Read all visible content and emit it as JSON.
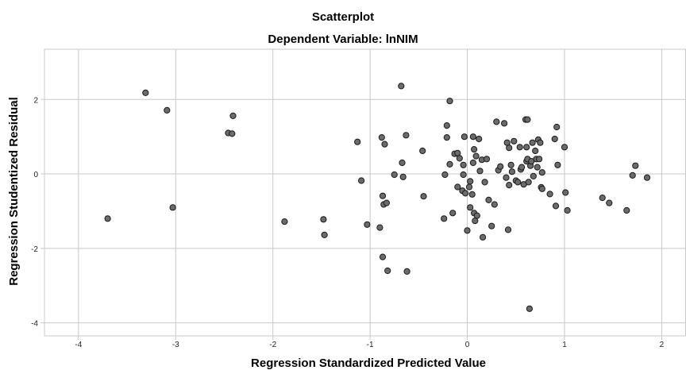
{
  "chart_data": {
    "type": "scatter",
    "title": "Scatterplot",
    "subtitle": "Dependent Variable: lnNIM",
    "xlabel": "Regression Standardized Predicted Value",
    "ylabel": "Regression Studentized Residual",
    "xlim": [
      -4.35,
      2.25
    ],
    "ylim": [
      -4.35,
      3.35
    ],
    "x_ticks": [
      -4,
      -3,
      -2,
      -1,
      0,
      1,
      2
    ],
    "y_ticks": [
      -4,
      -2,
      0,
      2
    ],
    "x_tick_labels": [
      "-4",
      "-3",
      "-2",
      "-1",
      "0",
      "1",
      "2"
    ],
    "y_tick_labels": [
      "-4",
      "-2",
      "0",
      "2"
    ],
    "grid": true,
    "point_color": "#6b6b6b",
    "point_edge_color": "#1a1a1a",
    "grid_color": "#c8c8c8",
    "points": [
      [
        -3.7,
        -1.2
      ],
      [
        -3.31,
        2.18
      ],
      [
        -3.09,
        1.71
      ],
      [
        -3.03,
        -0.9
      ],
      [
        -2.46,
        1.1
      ],
      [
        -2.42,
        1.08
      ],
      [
        -2.41,
        1.56
      ],
      [
        -1.88,
        -1.28
      ],
      [
        -1.48,
        -1.22
      ],
      [
        -1.47,
        -1.64
      ],
      [
        -1.13,
        0.86
      ],
      [
        -1.09,
        -0.18
      ],
      [
        -1.03,
        -1.36
      ],
      [
        -0.9,
        -1.44
      ],
      [
        -0.88,
        0.98
      ],
      [
        -0.87,
        -2.23
      ],
      [
        -0.87,
        -0.59
      ],
      [
        -0.85,
        0.8
      ],
      [
        -0.86,
        -0.82
      ],
      [
        -0.83,
        -0.78
      ],
      [
        -0.82,
        -2.6
      ],
      [
        -0.75,
        -0.02
      ],
      [
        -0.68,
        2.36
      ],
      [
        -0.67,
        0.3
      ],
      [
        -0.66,
        -0.08
      ],
      [
        -0.63,
        1.04
      ],
      [
        -0.62,
        -2.62
      ],
      [
        -0.46,
        0.62
      ],
      [
        -0.45,
        -0.6
      ],
      [
        -0.24,
        -1.2
      ],
      [
        -0.23,
        -0.02
      ],
      [
        -0.21,
        1.3
      ],
      [
        -0.21,
        0.98
      ],
      [
        -0.18,
        1.96
      ],
      [
        -0.18,
        0.26
      ],
      [
        -0.15,
        -1.05
      ],
      [
        -0.13,
        0.54
      ],
      [
        -0.1,
        0.56
      ],
      [
        -0.1,
        -0.35
      ],
      [
        -0.08,
        0.42
      ],
      [
        -0.05,
        -0.45
      ],
      [
        -0.04,
        -0.02
      ],
      [
        -0.04,
        0.24
      ],
      [
        -0.03,
        1.0
      ],
      [
        -0.02,
        -0.52
      ],
      [
        0.0,
        -1.52
      ],
      [
        0.02,
        -0.35
      ],
      [
        0.03,
        -0.9
      ],
      [
        0.03,
        -0.2
      ],
      [
        0.05,
        -0.55
      ],
      [
        0.06,
        1.0
      ],
      [
        0.06,
        0.3
      ],
      [
        0.07,
        -1.05
      ],
      [
        0.07,
        0.66
      ],
      [
        0.08,
        -1.26
      ],
      [
        0.09,
        0.48
      ],
      [
        0.1,
        -1.12
      ],
      [
        0.12,
        0.94
      ],
      [
        0.13,
        0.08
      ],
      [
        0.15,
        0.38
      ],
      [
        0.16,
        -1.7
      ],
      [
        0.18,
        -0.22
      ],
      [
        0.2,
        0.4
      ],
      [
        0.22,
        -0.7
      ],
      [
        0.25,
        -1.4
      ],
      [
        0.28,
        -0.82
      ],
      [
        0.3,
        1.4
      ],
      [
        0.32,
        0.1
      ],
      [
        0.34,
        0.2
      ],
      [
        0.38,
        1.36
      ],
      [
        0.4,
        -0.1
      ],
      [
        0.41,
        0.84
      ],
      [
        0.42,
        -1.5
      ],
      [
        0.43,
        0.7
      ],
      [
        0.43,
        -0.3
      ],
      [
        0.45,
        0.24
      ],
      [
        0.46,
        0.06
      ],
      [
        0.48,
        0.88
      ],
      [
        0.5,
        -0.18
      ],
      [
        0.52,
        -0.22
      ],
      [
        0.54,
        0.72
      ],
      [
        0.55,
        0.12
      ],
      [
        0.56,
        0.18
      ],
      [
        0.58,
        -0.28
      ],
      [
        0.6,
        1.46
      ],
      [
        0.61,
        0.34
      ],
      [
        0.61,
        0.72
      ],
      [
        0.62,
        1.46
      ],
      [
        0.62,
        0.4
      ],
      [
        0.63,
        -0.22
      ],
      [
        0.64,
        -3.62
      ],
      [
        0.65,
        0.22
      ],
      [
        0.66,
        0.34
      ],
      [
        0.67,
        0.84
      ],
      [
        0.68,
        -0.06
      ],
      [
        0.7,
        0.62
      ],
      [
        0.71,
        0.4
      ],
      [
        0.72,
        0.18
      ],
      [
        0.73,
        0.92
      ],
      [
        0.74,
        0.4
      ],
      [
        0.75,
        0.84
      ],
      [
        0.76,
        -0.36
      ],
      [
        0.77,
        0.04
      ],
      [
        0.77,
        -0.4
      ],
      [
        0.85,
        -0.54
      ],
      [
        0.9,
        0.94
      ],
      [
        0.91,
        -0.86
      ],
      [
        0.92,
        1.26
      ],
      [
        0.93,
        0.24
      ],
      [
        1.0,
        0.72
      ],
      [
        1.01,
        -0.5
      ],
      [
        1.03,
        -0.98
      ],
      [
        1.39,
        -0.64
      ],
      [
        1.46,
        -0.78
      ],
      [
        1.64,
        -0.98
      ],
      [
        1.7,
        -0.04
      ],
      [
        1.73,
        0.22
      ],
      [
        1.85,
        -0.1
      ]
    ]
  }
}
